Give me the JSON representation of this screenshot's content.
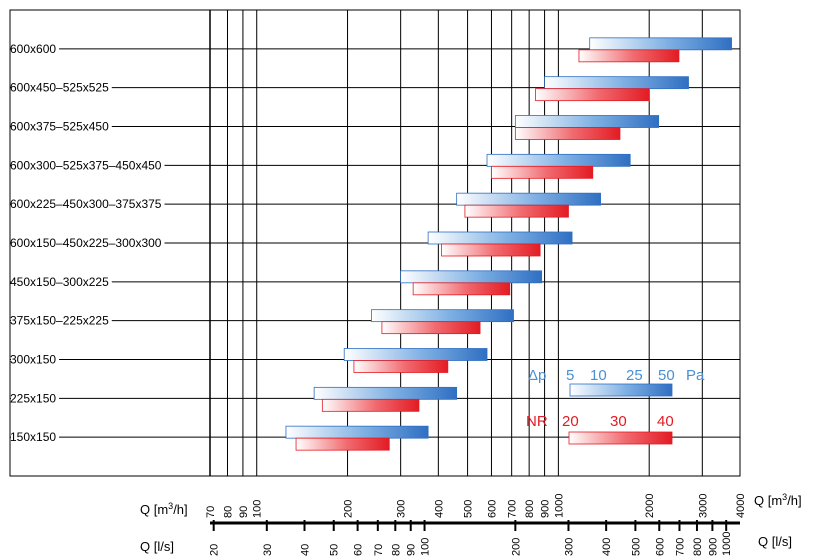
{
  "chart_data": {
    "type": "bar",
    "orientation": "horizontal-range",
    "x_axis_top": {
      "label": "Q [m³/h]",
      "label_main": "Q [m",
      "label_sup": "3",
      "label_end": "/h]",
      "scale": "log",
      "range": [
        70,
        4000
      ],
      "ticks": [
        "70",
        "80",
        "90",
        "100",
        "200",
        "300",
        "400",
        "500",
        "600",
        "700",
        "800",
        "900",
        "1000",
        "2000",
        "3000",
        "4000"
      ]
    },
    "x_axis_bottom": {
      "label": "Q [l/s]",
      "scale": "log",
      "ticks": [
        "20",
        "30",
        "40",
        "50",
        "60",
        "70",
        "80",
        "90",
        "100",
        "200",
        "300",
        "400",
        "500",
        "600",
        "700",
        "800",
        "900",
        "1000"
      ]
    },
    "grid": true,
    "categories": [
      "600x600",
      "600x450–525x525",
      "600x375–525x450",
      "600x300–525x375–450x450",
      "600x225–450x300–375x375",
      "600x150–450x225–300x300",
      "450x150–300x225",
      "375x150–225x225",
      "300x150",
      "225x150",
      "150x150"
    ],
    "series": [
      {
        "name": "Δp",
        "color": "#3a7ccb",
        "ranges": [
          [
            1270,
            3750
          ],
          [
            900,
            2700
          ],
          [
            720,
            2150
          ],
          [
            580,
            1730
          ],
          [
            460,
            1380
          ],
          [
            370,
            1110
          ],
          [
            300,
            880
          ],
          [
            240,
            710
          ],
          [
            195,
            580
          ],
          [
            155,
            460
          ],
          [
            125,
            370
          ]
        ]
      },
      {
        "name": "NR",
        "color": "#e8242b",
        "ranges": [
          [
            1170,
            2510
          ],
          [
            840,
            2000
          ],
          [
            720,
            1600
          ],
          [
            600,
            1300
          ],
          [
            490,
            1080
          ],
          [
            410,
            870
          ],
          [
            330,
            690
          ],
          [
            260,
            550
          ],
          [
            210,
            430
          ],
          [
            165,
            345
          ],
          [
            135,
            275
          ]
        ]
      }
    ],
    "legend": {
      "position": "bottom-right",
      "dp": {
        "label": "Δp",
        "values": [
          "5",
          "10",
          "25",
          "50"
        ],
        "unit": "Pa"
      },
      "nr": {
        "label": "NR",
        "values": [
          "20",
          "30",
          "40"
        ]
      }
    }
  }
}
